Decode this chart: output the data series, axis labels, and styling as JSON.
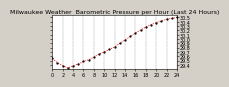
{
  "title": "Milwaukee Weather  Barometric Pressure per Hour (Last 24 Hours)",
  "bg_color": "#d4d0c8",
  "plot_bg": "#ffffff",
  "grid_color": "#888888",
  "line_color": "#ff0000",
  "marker_color": "#000000",
  "hours": [
    0,
    1,
    2,
    3,
    4,
    5,
    6,
    7,
    8,
    9,
    10,
    11,
    12,
    13,
    14,
    15,
    16,
    17,
    18,
    19,
    20,
    21,
    22,
    23,
    24
  ],
  "pressure": [
    29.55,
    29.45,
    29.38,
    29.33,
    29.38,
    29.42,
    29.48,
    29.52,
    29.58,
    29.65,
    29.7,
    29.76,
    29.82,
    29.9,
    29.98,
    30.06,
    30.14,
    30.21,
    30.28,
    30.33,
    30.38,
    30.42,
    30.46,
    30.48,
    30.5
  ],
  "ylim": [
    29.3,
    30.55
  ],
  "xlim": [
    0,
    24
  ],
  "yticks": [
    29.4,
    29.5,
    29.6,
    29.7,
    29.8,
    29.9,
    30.0,
    30.1,
    30.2,
    30.3,
    30.4,
    30.5
  ],
  "tick_hours": [
    0,
    2,
    4,
    6,
    8,
    10,
    12,
    14,
    16,
    18,
    20,
    22,
    24
  ],
  "title_fontsize": 4.5,
  "tick_fontsize": 3.5
}
